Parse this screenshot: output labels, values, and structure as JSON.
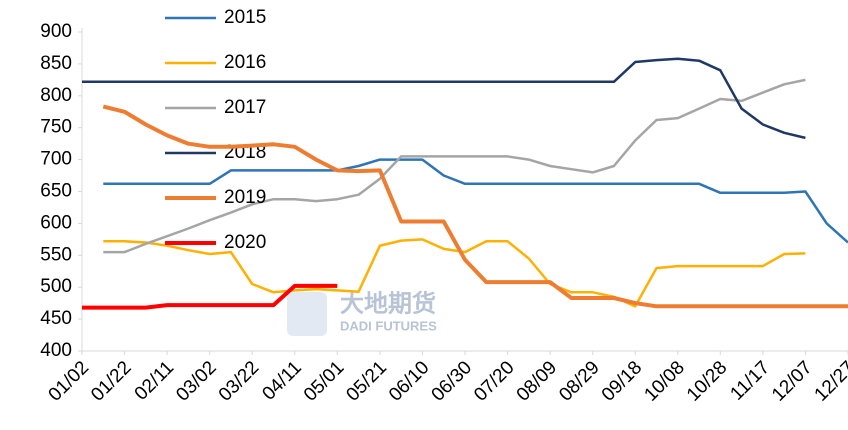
{
  "chart_data": {
    "type": "line",
    "x": [
      0,
      10,
      20,
      30,
      40,
      50,
      60,
      70,
      80,
      90,
      100,
      110,
      120,
      130,
      140,
      150,
      160,
      170,
      180,
      190,
      200,
      210,
      220,
      230,
      240,
      250,
      260,
      270,
      280,
      290,
      300,
      310,
      320,
      330,
      340,
      350,
      360
    ],
    "xlim": [
      0,
      360
    ],
    "xticks": [
      {
        "value": 0,
        "label": "01/02"
      },
      {
        "value": 20,
        "label": "01/22"
      },
      {
        "value": 40,
        "label": "02/11"
      },
      {
        "value": 60,
        "label": "03/02"
      },
      {
        "value": 80,
        "label": "03/22"
      },
      {
        "value": 100,
        "label": "04/11"
      },
      {
        "value": 120,
        "label": "05/01"
      },
      {
        "value": 140,
        "label": "05/21"
      },
      {
        "value": 160,
        "label": "06/10"
      },
      {
        "value": 180,
        "label": "06/30"
      },
      {
        "value": 200,
        "label": "07/20"
      },
      {
        "value": 220,
        "label": "08/09"
      },
      {
        "value": 240,
        "label": "08/29"
      },
      {
        "value": 260,
        "label": "09/18"
      },
      {
        "value": 280,
        "label": "10/08"
      },
      {
        "value": 300,
        "label": "10/28"
      },
      {
        "value": 320,
        "label": "11/17"
      },
      {
        "value": 340,
        "label": "12/07"
      },
      {
        "value": 360,
        "label": "12/27"
      }
    ],
    "ylim": [
      400,
      900
    ],
    "yticks": [
      400,
      450,
      500,
      550,
      600,
      650,
      700,
      750,
      800,
      850,
      900
    ],
    "grid": false,
    "series": [
      {
        "name": "2015",
        "color": "#2e75b6",
        "linewidth": 2.5,
        "values": [
          null,
          662,
          662,
          662,
          662,
          662,
          662,
          683,
          683,
          683,
          683,
          683,
          683,
          690,
          700,
          700,
          700,
          675,
          662,
          662,
          662,
          662,
          662,
          662,
          662,
          662,
          662,
          662,
          662,
          662,
          648,
          648,
          648,
          648,
          650,
          600,
          570
        ]
      },
      {
        "name": "2016",
        "color": "#ffb000",
        "linewidth": 2.5,
        "values": [
          null,
          572,
          572,
          570,
          565,
          558,
          552,
          555,
          505,
          492,
          495,
          497,
          495,
          493,
          565,
          573,
          575,
          560,
          555,
          572,
          572,
          545,
          505,
          492,
          492,
          485,
          470,
          530,
          533,
          533,
          533,
          533,
          533,
          552,
          553,
          null,
          null
        ]
      },
      {
        "name": "2017",
        "color": "#a5a5a5",
        "linewidth": 2.5,
        "values": [
          null,
          555,
          555,
          568,
          580,
          592,
          605,
          617,
          630,
          638,
          638,
          635,
          638,
          645,
          670,
          705,
          705,
          705,
          705,
          705,
          705,
          700,
          690,
          685,
          680,
          690,
          730,
          762,
          765,
          780,
          795,
          792,
          805,
          818,
          825,
          null,
          null
        ]
      },
      {
        "name": "2018",
        "color": "#1f3864",
        "linewidth": 2.5,
        "values": [
          822,
          822,
          822,
          822,
          822,
          822,
          822,
          822,
          822,
          822,
          822,
          822,
          822,
          822,
          822,
          822,
          822,
          822,
          822,
          822,
          822,
          822,
          822,
          822,
          822,
          822,
          853,
          856,
          858,
          855,
          840,
          780,
          755,
          742,
          734,
          null,
          null
        ]
      },
      {
        "name": "2019",
        "color": "#ed7d31",
        "linewidth": 4,
        "values": [
          null,
          783,
          775,
          755,
          738,
          725,
          720,
          720,
          722,
          724,
          720,
          700,
          683,
          682,
          683,
          603,
          603,
          603,
          543,
          508,
          508,
          508,
          508,
          483,
          483,
          483,
          475,
          470,
          470,
          470,
          470,
          470,
          470,
          470,
          470,
          470,
          470
        ]
      },
      {
        "name": "2020",
        "color": "#ff0000",
        "linewidth": 4,
        "values": [
          468,
          468,
          468,
          468,
          472,
          472,
          472,
          472,
          472,
          472,
          502,
          502,
          502,
          null,
          null,
          null,
          null,
          null,
          null,
          null,
          null,
          null,
          null,
          null,
          null,
          null,
          null,
          null,
          null,
          null,
          null,
          null,
          null,
          null,
          null,
          null,
          null
        ]
      }
    ],
    "watermark": {
      "cn": "大地期货",
      "en": "DADI FUTURES"
    }
  }
}
